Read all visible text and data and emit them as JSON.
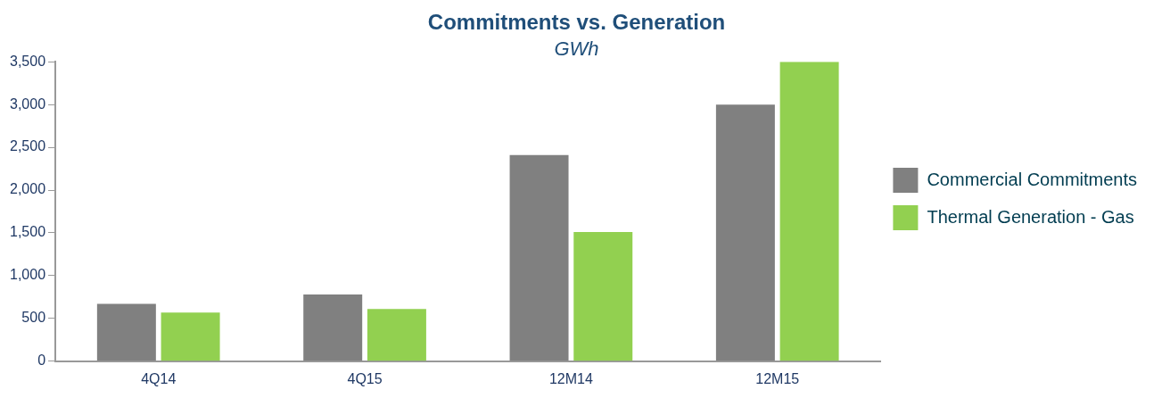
{
  "chart_data": {
    "type": "bar",
    "title": "Commitments vs. Generation",
    "subtitle": "GWh",
    "categories": [
      "4Q14",
      "4Q15",
      "12M14",
      "12M15"
    ],
    "series": [
      {
        "name": "Commercial Commitments",
        "color": "#808080",
        "values": [
          670,
          780,
          2410,
          3000
        ]
      },
      {
        "name": "Thermal Generation - Gas",
        "color": "#92d050",
        "values": [
          570,
          610,
          1510,
          3500
        ]
      }
    ],
    "ylim": [
      0,
      3500
    ],
    "yticks": [
      {
        "value": 0,
        "label": "0"
      },
      {
        "value": 500,
        "label": "500"
      },
      {
        "value": 1000,
        "label": "1,000"
      },
      {
        "value": 1500,
        "label": "1,500"
      },
      {
        "value": 2000,
        "label": "2,000"
      },
      {
        "value": 2500,
        "label": "2,500"
      },
      {
        "value": 3000,
        "label": "3,000"
      },
      {
        "value": 3500,
        "label": "3,500"
      }
    ],
    "grid": false,
    "legend": "right"
  }
}
